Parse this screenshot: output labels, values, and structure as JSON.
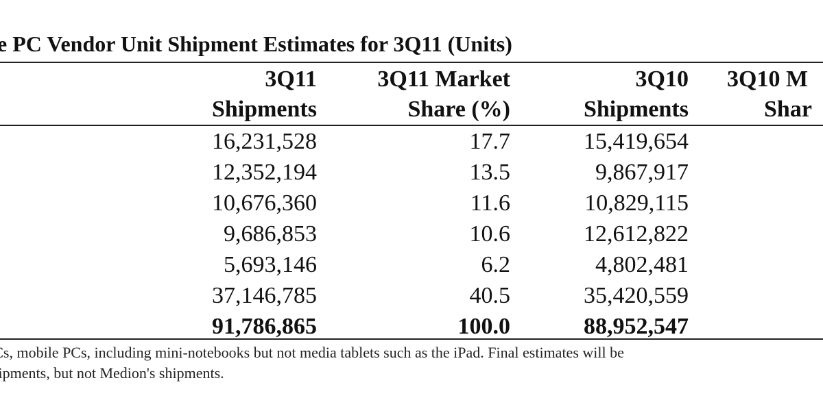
{
  "title": "e PC Vendor Unit Shipment Estimates for 3Q11 (Units)",
  "columns": [
    {
      "line1": "3Q11",
      "line2": "Shipments"
    },
    {
      "line1": "3Q11 Market",
      "line2": "Share (%)"
    },
    {
      "line1": "3Q10",
      "line2": "Shipments"
    },
    {
      "line1": "3Q10 M",
      "line2": "Shar"
    }
  ],
  "rows": [
    {
      "shipments_3q11": "16,231,528",
      "share_3q11": "17.7",
      "shipments_3q10": "15,419,654"
    },
    {
      "shipments_3q11": "12,352,194",
      "share_3q11": "13.5",
      "shipments_3q10": "9,867,917"
    },
    {
      "shipments_3q11": "10,676,360",
      "share_3q11": "11.6",
      "shipments_3q10": "10,829,115"
    },
    {
      "shipments_3q11": "9,686,853",
      "share_3q11": "10.6",
      "shipments_3q10": "12,612,822"
    },
    {
      "shipments_3q11": "5,693,146",
      "share_3q11": "6.2",
      "shipments_3q10": "4,802,481"
    },
    {
      "shipments_3q11": "37,146,785",
      "share_3q11": "40.5",
      "shipments_3q10": "35,420,559"
    },
    {
      "shipments_3q11": "91,786,865",
      "share_3q11": "100.0",
      "shipments_3q10": "88,952,547"
    }
  ],
  "notes": [
    "PCs, mobile PCs, including mini-notebooks but not media tablets such as the iPad. Final estimates will be",
    "shipments, but not Medion's shipments."
  ]
}
